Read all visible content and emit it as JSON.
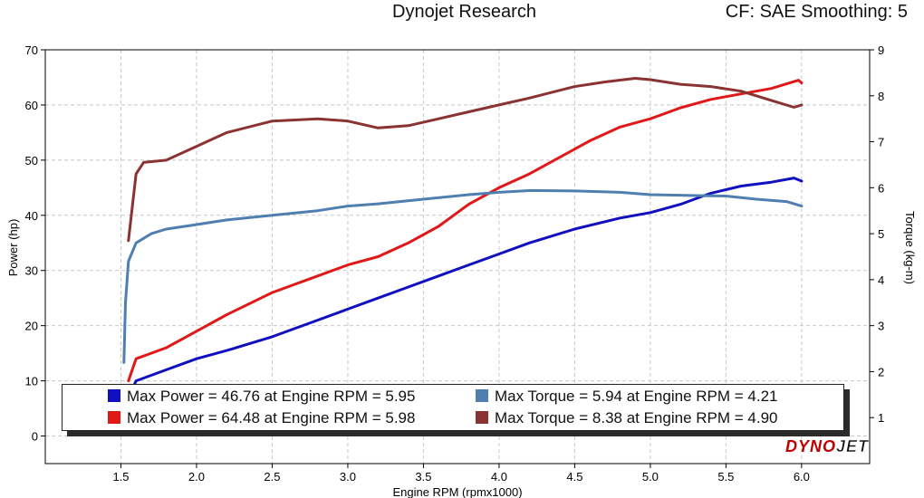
{
  "header": {
    "title": "Dynojet Research",
    "cf_smoothing": "CF: SAE Smoothing: 5"
  },
  "logo": {
    "part1": "DYNO",
    "part2": "JET"
  },
  "legend": [
    {
      "label": "Max Power = 46.76 at Engine RPM = 5.95",
      "color": "#1010c0"
    },
    {
      "label": "Max Torque = 5.94 at Engine RPM = 4.21",
      "color": "#4f7fb0"
    },
    {
      "label": "Max Power = 64.48 at Engine RPM = 5.98",
      "color": "#e01818"
    },
    {
      "label": "Max Torque = 8.38 at Engine RPM = 4.90",
      "color": "#8b3232"
    }
  ],
  "chart_data": {
    "type": "line",
    "xlabel": "Engine RPM (rpmx1000)",
    "ylabel_left": "Power (hp)",
    "ylabel_right": "Torque (kg-m)",
    "xlim": [
      1.0,
      6.45
    ],
    "ylim_left": [
      -5,
      70
    ],
    "ylim_right": [
      0,
      9
    ],
    "x_ticks": [
      "1.5",
      "2.0",
      "2.5",
      "3.0",
      "3.5",
      "4.0",
      "4.5",
      "5.0",
      "5.5",
      "6.0"
    ],
    "y_ticks_left": [
      "0",
      "10",
      "20",
      "30",
      "40",
      "50",
      "60",
      "70"
    ],
    "y_ticks_right": [
      "1",
      "2",
      "3",
      "4",
      "5",
      "6",
      "7",
      "8",
      "9"
    ],
    "grid": true,
    "series": [
      {
        "axis": "left",
        "color": "#1010c0",
        "width": 3,
        "points": [
          [
            1.55,
            7
          ],
          [
            1.6,
            10
          ],
          [
            1.7,
            11
          ],
          [
            1.8,
            12
          ],
          [
            2.0,
            14
          ],
          [
            2.2,
            15.5
          ],
          [
            2.5,
            18
          ],
          [
            2.8,
            21
          ],
          [
            3.0,
            23
          ],
          [
            3.2,
            25
          ],
          [
            3.4,
            27
          ],
          [
            3.6,
            29
          ],
          [
            3.8,
            31
          ],
          [
            4.0,
            33
          ],
          [
            4.2,
            35
          ],
          [
            4.5,
            37.5
          ],
          [
            4.8,
            39.5
          ],
          [
            5.0,
            40.5
          ],
          [
            5.2,
            42
          ],
          [
            5.4,
            44
          ],
          [
            5.6,
            45.3
          ],
          [
            5.8,
            46
          ],
          [
            5.95,
            46.76
          ],
          [
            6.0,
            46.2
          ]
        ]
      },
      {
        "axis": "left",
        "color": "#e01818",
        "width": 3,
        "points": [
          [
            1.55,
            10
          ],
          [
            1.6,
            14
          ],
          [
            1.7,
            15
          ],
          [
            1.8,
            16
          ],
          [
            2.0,
            19
          ],
          [
            2.2,
            22
          ],
          [
            2.5,
            26
          ],
          [
            2.8,
            29
          ],
          [
            3.0,
            31
          ],
          [
            3.2,
            32.5
          ],
          [
            3.4,
            35
          ],
          [
            3.6,
            38
          ],
          [
            3.8,
            42
          ],
          [
            4.0,
            45
          ],
          [
            4.2,
            47.5
          ],
          [
            4.4,
            50.5
          ],
          [
            4.6,
            53.5
          ],
          [
            4.8,
            56
          ],
          [
            5.0,
            57.5
          ],
          [
            5.2,
            59.5
          ],
          [
            5.4,
            61
          ],
          [
            5.6,
            62
          ],
          [
            5.8,
            63
          ],
          [
            5.98,
            64.48
          ],
          [
            6.0,
            64
          ]
        ]
      },
      {
        "axis": "right",
        "color": "#4f7fb0",
        "width": 3,
        "points": [
          [
            1.52,
            2.2
          ],
          [
            1.53,
            3.5
          ],
          [
            1.55,
            4.4
          ],
          [
            1.6,
            4.8
          ],
          [
            1.7,
            5.0
          ],
          [
            1.8,
            5.1
          ],
          [
            2.0,
            5.2
          ],
          [
            2.2,
            5.3
          ],
          [
            2.5,
            5.4
          ],
          [
            2.8,
            5.5
          ],
          [
            3.0,
            5.6
          ],
          [
            3.2,
            5.65
          ],
          [
            3.5,
            5.75
          ],
          [
            3.8,
            5.85
          ],
          [
            4.0,
            5.9
          ],
          [
            4.21,
            5.94
          ],
          [
            4.5,
            5.93
          ],
          [
            4.8,
            5.9
          ],
          [
            5.0,
            5.85
          ],
          [
            5.3,
            5.83
          ],
          [
            5.5,
            5.82
          ],
          [
            5.7,
            5.75
          ],
          [
            5.9,
            5.7
          ],
          [
            6.0,
            5.6
          ]
        ]
      },
      {
        "axis": "right",
        "color": "#8b3232",
        "width": 3,
        "points": [
          [
            1.55,
            4.85
          ],
          [
            1.6,
            6.3
          ],
          [
            1.65,
            6.55
          ],
          [
            1.8,
            6.6
          ],
          [
            2.0,
            6.9
          ],
          [
            2.2,
            7.2
          ],
          [
            2.5,
            7.45
          ],
          [
            2.8,
            7.5
          ],
          [
            3.0,
            7.45
          ],
          [
            3.2,
            7.3
          ],
          [
            3.4,
            7.35
          ],
          [
            3.6,
            7.5
          ],
          [
            3.8,
            7.65
          ],
          [
            4.0,
            7.8
          ],
          [
            4.2,
            7.95
          ],
          [
            4.5,
            8.2
          ],
          [
            4.7,
            8.3
          ],
          [
            4.9,
            8.38
          ],
          [
            5.0,
            8.35
          ],
          [
            5.2,
            8.25
          ],
          [
            5.4,
            8.2
          ],
          [
            5.6,
            8.1
          ],
          [
            5.8,
            7.9
          ],
          [
            5.95,
            7.75
          ],
          [
            6.0,
            7.8
          ]
        ]
      }
    ]
  }
}
